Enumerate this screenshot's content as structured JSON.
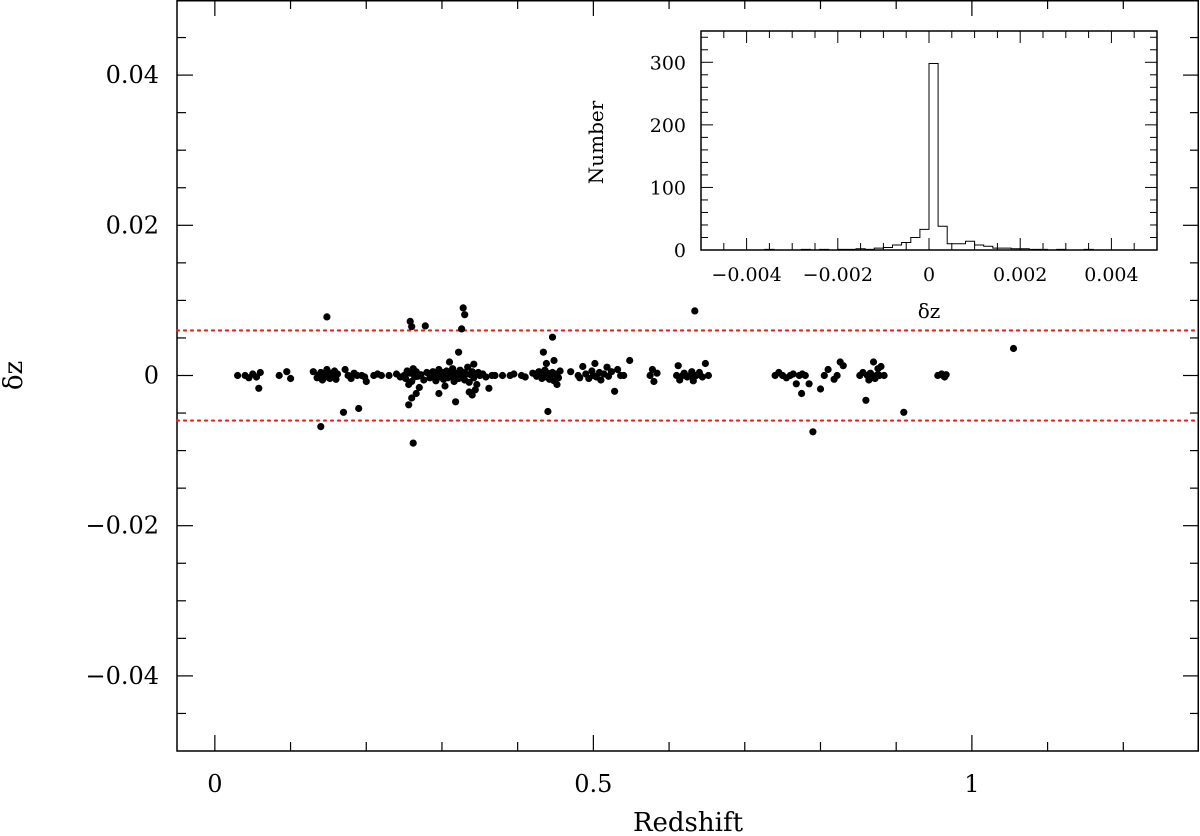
{
  "chart_data": [
    {
      "type": "scatter",
      "title": "",
      "xlabel": "Redshift",
      "ylabel": "δz",
      "xlim": [
        -0.05,
        1.3
      ],
      "ylim": [
        -0.05,
        0.05
      ],
      "xticks": [
        {
          "value": 0,
          "label": "0"
        },
        {
          "value": 0.5,
          "label": "0.5"
        },
        {
          "value": 1,
          "label": "1"
        }
      ],
      "yticks": [
        {
          "value": 0.04,
          "label": "0.04"
        },
        {
          "value": 0.02,
          "label": "0.02"
        },
        {
          "value": 0,
          "label": "0"
        },
        {
          "value": -0.02,
          "label": "−0.02"
        },
        {
          "value": -0.04,
          "label": "−0.04"
        }
      ],
      "reference_lines": [
        {
          "y": 0.006,
          "style": "dotted",
          "color": "#e8201a"
        },
        {
          "y": -0.006,
          "style": "dotted",
          "color": "#e8201a"
        }
      ],
      "marker_color": "#000000",
      "points": [
        [
          0.03,
          0.0
        ],
        [
          0.04,
          0.0
        ],
        [
          0.045,
          -0.0003
        ],
        [
          0.05,
          0.0002
        ],
        [
          0.055,
          -0.0002
        ],
        [
          0.058,
          -0.0017
        ],
        [
          0.06,
          0.0004
        ],
        [
          0.085,
          0.0
        ],
        [
          0.095,
          0.0005
        ],
        [
          0.1,
          -0.0004
        ],
        [
          0.13,
          0.0005
        ],
        [
          0.135,
          -0.0003
        ],
        [
          0.138,
          0.0001
        ],
        [
          0.14,
          0.0004
        ],
        [
          0.142,
          -0.0006
        ],
        [
          0.144,
          0.0002
        ],
        [
          0.146,
          -0.0002
        ],
        [
          0.148,
          0.0008
        ],
        [
          0.15,
          0.0
        ],
        [
          0.152,
          -0.0004
        ],
        [
          0.154,
          0.0003
        ],
        [
          0.156,
          -0.0001
        ],
        [
          0.158,
          0.0006
        ],
        [
          0.16,
          -0.0005
        ],
        [
          0.162,
          0.0002
        ],
        [
          0.14,
          -0.0068
        ],
        [
          0.148,
          0.0078
        ],
        [
          0.17,
          -0.0049
        ],
        [
          0.172,
          0.0008
        ],
        [
          0.176,
          0.0
        ],
        [
          0.18,
          -0.0004
        ],
        [
          0.184,
          0.0003
        ],
        [
          0.188,
          0.0
        ],
        [
          0.19,
          -0.0044
        ],
        [
          0.194,
          0.0
        ],
        [
          0.198,
          -0.0002
        ],
        [
          0.2,
          -0.0008
        ],
        [
          0.21,
          0.0
        ],
        [
          0.215,
          0.0002
        ],
        [
          0.22,
          0.0
        ],
        [
          0.23,
          0.0
        ],
        [
          0.24,
          0.0002
        ],
        [
          0.245,
          -0.0002
        ],
        [
          0.25,
          0.0
        ],
        [
          0.252,
          -0.0004
        ],
        [
          0.254,
          0.0006
        ],
        [
          0.256,
          -0.0012
        ],
        [
          0.258,
          0.0003
        ],
        [
          0.26,
          -0.0008
        ],
        [
          0.262,
          0.0009
        ],
        [
          0.264,
          -0.0002
        ],
        [
          0.266,
          0.0005
        ],
        [
          0.268,
          -0.0001
        ],
        [
          0.27,
          0.0
        ],
        [
          0.26,
          -0.003
        ],
        [
          0.256,
          -0.0039
        ],
        [
          0.266,
          -0.0024
        ],
        [
          0.27,
          -0.0016
        ],
        [
          0.258,
          0.0072
        ],
        [
          0.26,
          0.0065
        ],
        [
          0.278,
          0.0066
        ],
        [
          0.262,
          -0.009
        ],
        [
          0.272,
          0.0001
        ],
        [
          0.276,
          -0.0006
        ],
        [
          0.28,
          0.0004
        ],
        [
          0.284,
          -0.0003
        ],
        [
          0.288,
          0.0005
        ],
        [
          0.29,
          0.0
        ],
        [
          0.292,
          -0.0007
        ],
        [
          0.294,
          0.0002
        ],
        [
          0.296,
          0.0008
        ],
        [
          0.298,
          -0.0002
        ],
        [
          0.3,
          0.0004
        ],
        [
          0.302,
          -0.0005
        ],
        [
          0.304,
          0.0001
        ],
        [
          0.306,
          0.0006
        ],
        [
          0.308,
          -0.0003
        ],
        [
          0.31,
          0.0002
        ],
        [
          0.312,
          -0.0001
        ],
        [
          0.314,
          0.0009
        ],
        [
          0.316,
          -0.0008
        ],
        [
          0.318,
          0.0003
        ],
        [
          0.32,
          0.0
        ],
        [
          0.322,
          -0.0004
        ],
        [
          0.324,
          0.0007
        ],
        [
          0.326,
          -0.0001
        ],
        [
          0.328,
          0.0004
        ],
        [
          0.33,
          -0.0006
        ],
        [
          0.332,
          0.0002
        ],
        [
          0.334,
          0.0011
        ],
        [
          0.336,
          -0.0009
        ],
        [
          0.338,
          0.0001
        ],
        [
          0.34,
          0.0005
        ],
        [
          0.342,
          -0.0003
        ],
        [
          0.344,
          0.0002
        ],
        [
          0.346,
          -0.0012
        ],
        [
          0.348,
          0.0004
        ],
        [
          0.296,
          -0.0024
        ],
        [
          0.304,
          -0.0014
        ],
        [
          0.31,
          0.0018
        ],
        [
          0.318,
          -0.0035
        ],
        [
          0.322,
          0.0031
        ],
        [
          0.326,
          0.0062
        ],
        [
          0.328,
          0.009
        ],
        [
          0.33,
          0.0081
        ],
        [
          0.336,
          -0.0022
        ],
        [
          0.34,
          -0.0026
        ],
        [
          0.344,
          -0.0019
        ],
        [
          0.342,
          0.0015
        ],
        [
          0.35,
          0.0
        ],
        [
          0.354,
          0.0002
        ],
        [
          0.358,
          -0.0002
        ],
        [
          0.362,
          -0.0017
        ],
        [
          0.366,
          0.0
        ],
        [
          0.37,
          0.0
        ],
        [
          0.38,
          0.0
        ],
        [
          0.39,
          0.0
        ],
        [
          0.395,
          0.0002
        ],
        [
          0.405,
          0.0
        ],
        [
          0.41,
          -0.0002
        ],
        [
          0.42,
          0.0003
        ],
        [
          0.425,
          -0.0001
        ],
        [
          0.428,
          0.0005
        ],
        [
          0.43,
          0.0
        ],
        [
          0.432,
          -0.0004
        ],
        [
          0.434,
          0.0002
        ],
        [
          0.436,
          0.0007
        ],
        [
          0.438,
          -0.0002
        ],
        [
          0.44,
          0.0003
        ],
        [
          0.442,
          -0.0005
        ],
        [
          0.444,
          0.0001
        ],
        [
          0.446,
          0.0004
        ],
        [
          0.448,
          -0.0007
        ],
        [
          0.45,
          0.0002
        ],
        [
          0.452,
          0.0
        ],
        [
          0.454,
          -0.0003
        ],
        [
          0.456,
          0.0006
        ],
        [
          0.434,
          0.0031
        ],
        [
          0.44,
          -0.0048
        ],
        [
          0.446,
          0.0051
        ],
        [
          0.438,
          0.0016
        ],
        [
          0.448,
          0.002
        ],
        [
          0.452,
          -0.0012
        ],
        [
          0.47,
          0.0005
        ],
        [
          0.48,
          0.0
        ],
        [
          0.482,
          -0.0003
        ],
        [
          0.486,
          0.0012
        ],
        [
          0.49,
          0.0002
        ],
        [
          0.494,
          -0.0004
        ],
        [
          0.498,
          0.0006
        ],
        [
          0.5,
          0.0
        ],
        [
          0.502,
          0.0016
        ],
        [
          0.504,
          -0.0002
        ],
        [
          0.508,
          0.0004
        ],
        [
          0.51,
          -0.0006
        ],
        [
          0.514,
          0.0002
        ],
        [
          0.518,
          0.0011
        ],
        [
          0.52,
          -0.0001
        ],
        [
          0.524,
          0.0005
        ],
        [
          0.528,
          -0.0021
        ],
        [
          0.532,
          0.0008
        ],
        [
          0.536,
          0.0
        ],
        [
          0.54,
          0.0
        ],
        [
          0.548,
          0.002
        ],
        [
          0.575,
          0.0
        ],
        [
          0.578,
          0.0008
        ],
        [
          0.58,
          -0.0008
        ],
        [
          0.584,
          0.0003
        ],
        [
          0.61,
          0.0
        ],
        [
          0.612,
          0.0013
        ],
        [
          0.614,
          -0.0006
        ],
        [
          0.618,
          0.0
        ],
        [
          0.62,
          0.0003
        ],
        [
          0.624,
          -0.0002
        ],
        [
          0.628,
          0.0
        ],
        [
          0.63,
          0.0005
        ],
        [
          0.632,
          -0.0007
        ],
        [
          0.636,
          0.0
        ],
        [
          0.64,
          0.0004
        ],
        [
          0.644,
          -0.0002
        ],
        [
          0.648,
          0.0016
        ],
        [
          0.652,
          0.0
        ],
        [
          0.634,
          0.0086
        ],
        [
          0.74,
          0.0
        ],
        [
          0.745,
          0.0004
        ],
        [
          0.75,
          0.0
        ],
        [
          0.755,
          -0.0003
        ],
        [
          0.76,
          0.0
        ],
        [
          0.764,
          0.0002
        ],
        [
          0.768,
          -0.0011
        ],
        [
          0.772,
          0.0
        ],
        [
          0.776,
          0.0002
        ],
        [
          0.775,
          -0.0024
        ],
        [
          0.78,
          0.0
        ],
        [
          0.79,
          -0.0075
        ],
        [
          0.785,
          -0.0011
        ],
        [
          0.8,
          -0.0018
        ],
        [
          0.805,
          0.0
        ],
        [
          0.81,
          0.0008
        ],
        [
          0.818,
          -0.0005
        ],
        [
          0.822,
          0.0
        ],
        [
          0.826,
          0.0018
        ],
        [
          0.83,
          0.0013
        ],
        [
          0.852,
          0.0
        ],
        [
          0.856,
          0.0004
        ],
        [
          0.86,
          -0.0033
        ],
        [
          0.862,
          0.0
        ],
        [
          0.864,
          -0.0006
        ],
        [
          0.866,
          0.0003
        ],
        [
          0.868,
          0.0
        ],
        [
          0.87,
          0.0018
        ],
        [
          0.872,
          -0.0004
        ],
        [
          0.874,
          0.0
        ],
        [
          0.876,
          0.0009
        ],
        [
          0.878,
          0.0
        ],
        [
          0.88,
          0.0012
        ],
        [
          0.884,
          0.0
        ],
        [
          0.91,
          -0.0049
        ],
        [
          0.955,
          0.0
        ],
        [
          0.96,
          0.0002
        ],
        [
          0.962,
          0.0
        ],
        [
          0.964,
          -0.0002
        ],
        [
          0.966,
          0.0001
        ],
        [
          1.055,
          0.0036
        ]
      ]
    },
    {
      "type": "histogram",
      "title": "",
      "xlabel": "δz",
      "ylabel": "Number",
      "xlim": [
        -0.005,
        0.005
      ],
      "ylim": [
        0,
        350
      ],
      "xticks": [
        {
          "value": -0.004,
          "label": "−0.004"
        },
        {
          "value": -0.002,
          "label": "−0.002"
        },
        {
          "value": 0,
          "label": "0"
        },
        {
          "value": 0.002,
          "label": "0.002"
        },
        {
          "value": 0.004,
          "label": "0.004"
        }
      ],
      "yticks": [
        {
          "value": 0,
          "label": "0"
        },
        {
          "value": 100,
          "label": "100"
        },
        {
          "value": 200,
          "label": "200"
        },
        {
          "value": 300,
          "label": "300"
        }
      ],
      "bin_width": 0.0002,
      "bins": [
        {
          "start": -0.005,
          "count": 0
        },
        {
          "start": -0.0048,
          "count": 0
        },
        {
          "start": -0.0046,
          "count": 0
        },
        {
          "start": -0.0044,
          "count": 0
        },
        {
          "start": -0.0042,
          "count": 0
        },
        {
          "start": -0.004,
          "count": 0
        },
        {
          "start": -0.0038,
          "count": 0
        },
        {
          "start": -0.0036,
          "count": 1
        },
        {
          "start": -0.0034,
          "count": 0
        },
        {
          "start": -0.0032,
          "count": 0
        },
        {
          "start": -0.003,
          "count": 0
        },
        {
          "start": -0.0028,
          "count": 1
        },
        {
          "start": -0.0026,
          "count": 0
        },
        {
          "start": -0.0024,
          "count": 1
        },
        {
          "start": -0.0022,
          "count": 0
        },
        {
          "start": -0.002,
          "count": 1
        },
        {
          "start": -0.0018,
          "count": 1
        },
        {
          "start": -0.0016,
          "count": 2
        },
        {
          "start": -0.0014,
          "count": 1
        },
        {
          "start": -0.0012,
          "count": 3
        },
        {
          "start": -0.001,
          "count": 4
        },
        {
          "start": -0.0008,
          "count": 8
        },
        {
          "start": -0.0006,
          "count": 12
        },
        {
          "start": -0.0004,
          "count": 20
        },
        {
          "start": -0.0002,
          "count": 33
        },
        {
          "start": 0.0,
          "count": 298
        },
        {
          "start": 0.0002,
          "count": 38
        },
        {
          "start": 0.0004,
          "count": 10
        },
        {
          "start": 0.0006,
          "count": 10
        },
        {
          "start": 0.0008,
          "count": 14
        },
        {
          "start": 0.001,
          "count": 8
        },
        {
          "start": 0.0012,
          "count": 6
        },
        {
          "start": 0.0014,
          "count": 3
        },
        {
          "start": 0.0016,
          "count": 3
        },
        {
          "start": 0.0018,
          "count": 2
        },
        {
          "start": 0.002,
          "count": 2
        },
        {
          "start": 0.0022,
          "count": 1
        },
        {
          "start": 0.0024,
          "count": 1
        },
        {
          "start": 0.0026,
          "count": 0
        },
        {
          "start": 0.0028,
          "count": 1
        },
        {
          "start": 0.003,
          "count": 0
        },
        {
          "start": 0.0032,
          "count": 0
        },
        {
          "start": 0.0034,
          "count": 1
        },
        {
          "start": 0.0036,
          "count": 0
        },
        {
          "start": 0.0038,
          "count": 0
        },
        {
          "start": 0.004,
          "count": 0
        },
        {
          "start": 0.0042,
          "count": 0
        },
        {
          "start": 0.0044,
          "count": 0
        },
        {
          "start": 0.0046,
          "count": 0
        },
        {
          "start": 0.0048,
          "count": 0
        }
      ]
    }
  ]
}
